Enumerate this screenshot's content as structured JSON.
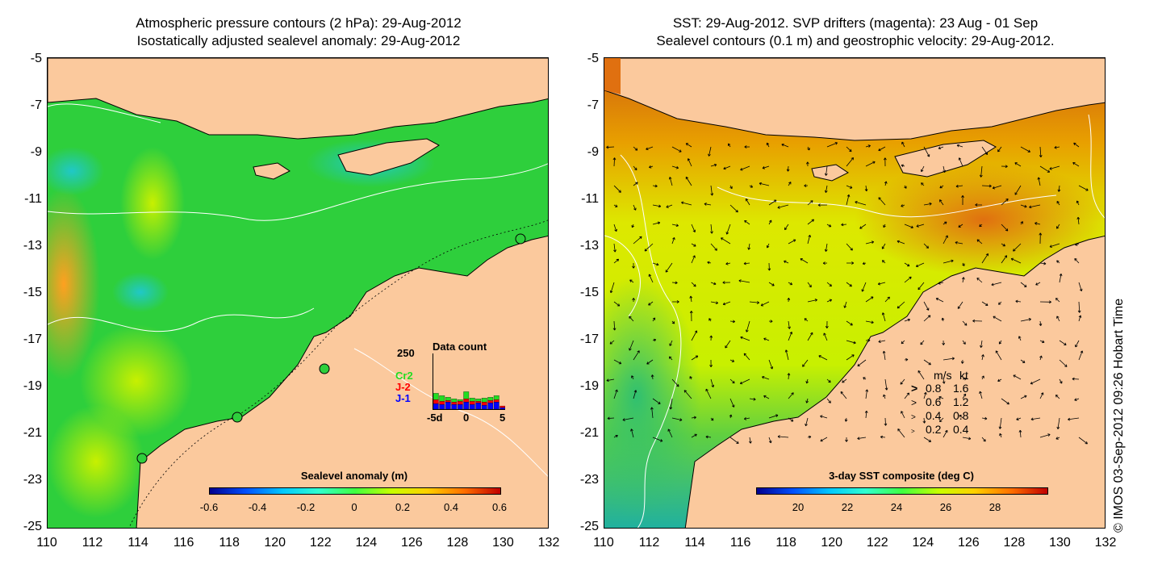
{
  "left_panel": {
    "title_line1": "Atmospheric pressure contours (2 hPa): 29-Aug-2012",
    "title_line2": "Isostatically adjusted sealevel anomaly: 29-Aug-2012",
    "colorbar_title": "Sealevel anomaly (m)",
    "colorbar_ticks": [
      "-0.6",
      "-0.4",
      "-0.2",
      "0",
      "0.2",
      "0.4",
      "0.6"
    ],
    "inset": {
      "title": "Data count",
      "ymax_label": "250",
      "series": [
        {
          "name": "Cr2",
          "color": "#22dd22"
        },
        {
          "name": "J-2",
          "color": "#ff0000"
        },
        {
          "name": "J-1",
          "color": "#0000ff"
        }
      ],
      "x_ticks": [
        "-5d",
        "0",
        "5"
      ],
      "bars_j1": [
        35,
        30,
        45,
        30,
        30,
        45,
        30,
        40,
        25,
        40,
        45,
        10
      ],
      "bars_j2": [
        25,
        20,
        10,
        15,
        20,
        20,
        20,
        10,
        20,
        15,
        15,
        10
      ],
      "bars_cr2": [
        40,
        35,
        20,
        20,
        10,
        45,
        20,
        15,
        25,
        20,
        25,
        0
      ]
    }
  },
  "right_panel": {
    "title_line1": "SST: 29-Aug-2012. SVP drifters (magenta): 23 Aug - 01 Sep",
    "title_line2": "Sealevel contours (0.1 m) and geostrophic velocity: 29-Aug-2012.",
    "colorbar_title": "3-day SST composite (deg C)",
    "colorbar_ticks": [
      "20",
      "22",
      "24",
      "26",
      "28"
    ],
    "velocity_legend": {
      "header_ms": "m/s",
      "header_kt": "kt",
      "rows": [
        {
          "ms": "0.8",
          "kt": "1.6"
        },
        {
          "ms": "0.6",
          "kt": "1.2"
        },
        {
          "ms": "0.4",
          "kt": "0.8"
        },
        {
          "ms": "0.2",
          "kt": "0.4"
        }
      ]
    }
  },
  "axes": {
    "y_ticks": [
      "-5",
      "-7",
      "-9",
      "-11",
      "-13",
      "-15",
      "-17",
      "-19",
      "-21",
      "-23",
      "-25"
    ],
    "x_ticks": [
      "110",
      "112",
      "114",
      "116",
      "118",
      "120",
      "122",
      "124",
      "126",
      "128",
      "130",
      "132"
    ]
  },
  "copyright": "© IMOS 03-Sep-2012 09:26 Hobart Time",
  "colors": {
    "land": "#fbc99d",
    "ocean_left": "#2ecf3c",
    "ocean_right_warm": "#e08a10",
    "ocean_right_mid": "#ddee00"
  }
}
